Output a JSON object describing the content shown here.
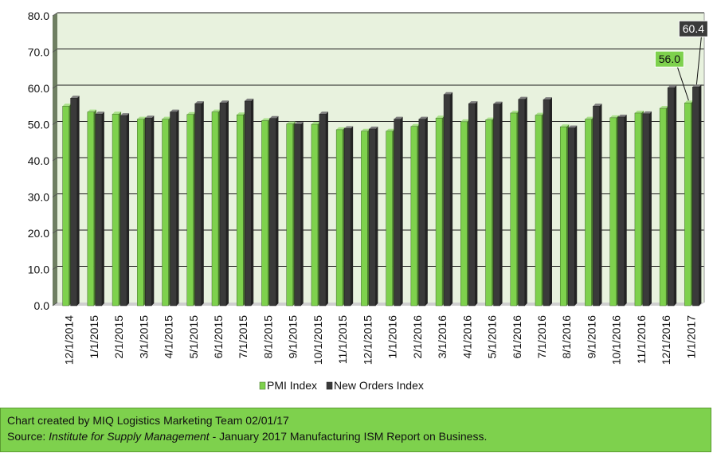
{
  "chart_data": {
    "type": "bar",
    "categories": [
      "12/1/2014",
      "1/1/2015",
      "2/1/2015",
      "3/1/2015",
      "4/1/2015",
      "5/1/2015",
      "6/1/2015",
      "7/1/2015",
      "8/1/2015",
      "9/1/2015",
      "10/1/2015",
      "11/1/2015",
      "12/1/2015",
      "1/1/2016",
      "2/1/2016",
      "3/1/2016",
      "4/1/2016",
      "5/1/2016",
      "6/1/2016",
      "7/1/2016",
      "8/1/2016",
      "9/1/2016",
      "10/1/2016",
      "11/1/2016",
      "12/1/2016",
      "1/1/2017"
    ],
    "series": [
      {
        "name": "PMI Index",
        "color": "#7ed14d",
        "values": [
          55.1,
          53.5,
          52.9,
          51.5,
          51.5,
          52.8,
          53.5,
          52.7,
          51.1,
          50.2,
          50.1,
          48.6,
          48.2,
          48.2,
          49.5,
          51.8,
          50.8,
          51.3,
          53.2,
          52.6,
          49.4,
          51.5,
          51.9,
          53.2,
          54.5,
          56.0
        ]
      },
      {
        "name": "New Orders Index",
        "color": "#3a3a3a",
        "values": [
          57.3,
          52.9,
          52.5,
          51.8,
          53.5,
          55.8,
          56.0,
          56.5,
          51.7,
          50.1,
          52.9,
          48.9,
          48.8,
          51.5,
          51.5,
          58.3,
          55.8,
          55.7,
          57.0,
          56.9,
          49.1,
          55.1,
          52.1,
          53.0,
          60.2,
          60.4
        ]
      }
    ],
    "ylim": [
      0,
      80
    ],
    "yticks": [
      "0.0",
      "10.0",
      "20.0",
      "30.0",
      "40.0",
      "50.0",
      "60.0",
      "70.0",
      "80.0"
    ],
    "grid": true,
    "legend_position": "bottom",
    "data_labels": [
      {
        "series": 0,
        "index": 25,
        "text": "56.0"
      },
      {
        "series": 1,
        "index": 25,
        "text": "60.4"
      }
    ]
  },
  "footer": {
    "line1": "Chart created by MIQ Logistics Marketing Team 02/01/17",
    "source_prefix": "Source: ",
    "source_italic": "Institute for Supply Management",
    "source_rest": " - January 2017 Manufacturing ISM Report on Business."
  }
}
